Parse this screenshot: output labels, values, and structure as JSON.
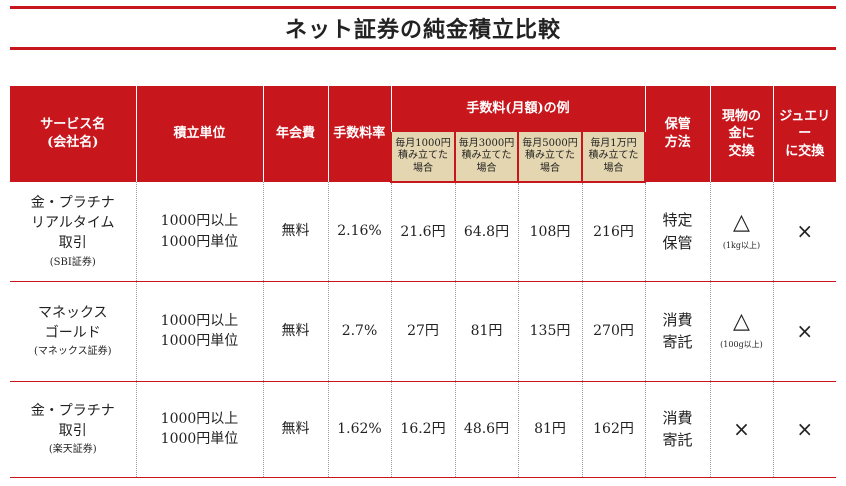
{
  "title": "ネット証券の純金積立比較",
  "header": {
    "service": [
      "サービス名",
      "(会社名)"
    ],
    "unit": "積立単位",
    "annual_fee": "年会費",
    "fee_rate": "手数料率",
    "monthly_fee_group": "手数料(月額)の例",
    "monthly_examples": [
      [
        "毎月1000円",
        "積み立てた",
        "場合"
      ],
      [
        "毎月3000円",
        "積み立てた",
        "場合"
      ],
      [
        "毎月5000円",
        "積み立てた",
        "場合"
      ],
      [
        "毎月1万円",
        "積み立てた",
        "場合"
      ]
    ],
    "storage": [
      "保管",
      "方法"
    ],
    "physical": [
      "現物の",
      "金に",
      "交換"
    ],
    "jewelry": [
      "ジュエリー",
      "に交換"
    ]
  },
  "rows": [
    {
      "service": [
        "金・プラチナ",
        "リアルタイム",
        "取引"
      ],
      "company": "(SBI証券)",
      "unit": [
        "1000円以上",
        "1000円単位"
      ],
      "annual_fee": "無料",
      "fee_rate": "2.16%",
      "fees": [
        "21.6円",
        "64.8円",
        "108円",
        "216円"
      ],
      "storage": [
        "特定",
        "保管"
      ],
      "physical": "△",
      "physical_note": "(1kg以上)",
      "jewelry": "×"
    },
    {
      "service": [
        "マネックス",
        "ゴールド"
      ],
      "company": "(マネックス証券)",
      "unit": [
        "1000円以上",
        "1000円単位"
      ],
      "annual_fee": "無料",
      "fee_rate": "2.7%",
      "fees": [
        "27円",
        "81円",
        "135円",
        "270円"
      ],
      "storage": [
        "消費",
        "寄託"
      ],
      "physical": "△",
      "physical_note": "(100g以上)",
      "jewelry": "×"
    },
    {
      "service": [
        "金・プラチナ",
        "取引"
      ],
      "company": "(楽天証券)",
      "unit": [
        "1000円以上",
        "1000円単位"
      ],
      "annual_fee": "無料",
      "fee_rate": "1.62%",
      "fees": [
        "16.2円",
        "48.6円",
        "81円",
        "162円"
      ],
      "storage": [
        "消費",
        "寄託"
      ],
      "physical": "×",
      "physical_note": "",
      "jewelry": "×"
    }
  ],
  "colors": {
    "accent": "#c8161d",
    "subheader_bg": "#e4d6b0"
  }
}
